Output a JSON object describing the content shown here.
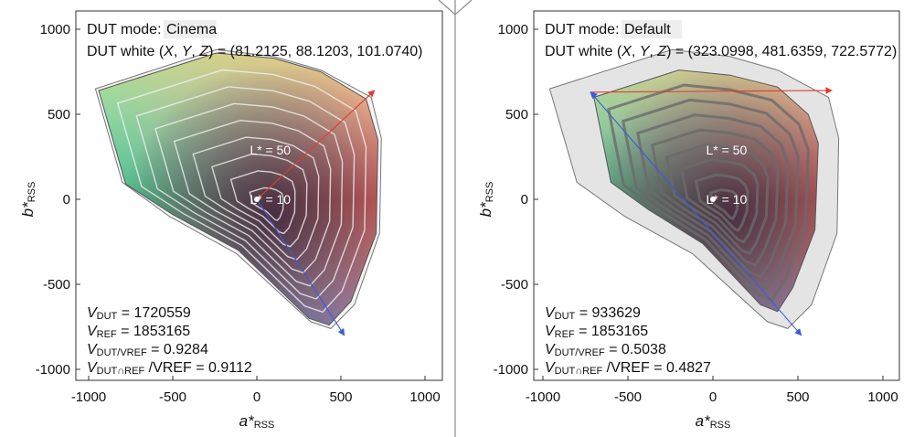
{
  "chart_data": [
    {
      "type": "area",
      "xlabel": "a*",
      "xlabel_sub": "RSS",
      "ylabel": "b*",
      "ylabel_sub": "RSS",
      "xlim": [
        -1100,
        1100
      ],
      "ylim": [
        -1100,
        1100
      ],
      "xticks": [
        "-1000",
        "-500",
        "0",
        "500",
        "1000"
      ],
      "yticks": [
        "1000",
        "500",
        "0",
        "-500",
        "-1000"
      ],
      "dut_mode_label": "DUT mode:",
      "dut_mode": "Cinema",
      "dut_white_label": "DUT white (",
      "dut_white_vars": [
        "X",
        "Y",
        "Z"
      ],
      "dut_white_values": "(81.2125, 88.1203, 101.0740)",
      "lightness_labels": [
        {
          "text": "L* = 50",
          "a": 80,
          "b": 290
        },
        {
          "text": "L* = 10",
          "a": 80,
          "b": 0
        }
      ],
      "stats": [
        {
          "name": "V",
          "sub": "DUT",
          "value": "= 1720559"
        },
        {
          "name": "V",
          "sub": "REF",
          "value": "= 1853165"
        },
        {
          "name": "V",
          "sub": "DUT/VREF",
          "value": "= 0.9284"
        },
        {
          "name": "V",
          "sub": "DUT∩REF",
          "value": "/VREF = 0.9112"
        }
      ],
      "ref_gamut": [
        [
          -960,
          650
        ],
        [
          -240,
          880
        ],
        [
          100,
          840
        ],
        [
          380,
          760
        ],
        [
          680,
          600
        ],
        [
          740,
          360
        ],
        [
          730,
          -200
        ],
        [
          580,
          -620
        ],
        [
          440,
          -760
        ],
        [
          320,
          -720
        ],
        [
          -120,
          -320
        ],
        [
          -520,
          -100
        ],
        [
          -800,
          100
        ],
        [
          -960,
          650
        ]
      ],
      "dut_gamut": [
        [
          -940,
          640
        ],
        [
          -240,
          860
        ],
        [
          100,
          830
        ],
        [
          380,
          750
        ],
        [
          650,
          590
        ],
        [
          720,
          350
        ],
        [
          710,
          -200
        ],
        [
          560,
          -600
        ],
        [
          430,
          -740
        ],
        [
          310,
          -700
        ],
        [
          -110,
          -300
        ],
        [
          -500,
          -90
        ],
        [
          -780,
          90
        ],
        [
          -940,
          640
        ]
      ],
      "axis_arrows": [
        {
          "from": [
            0,
            0
          ],
          "to": [
            700,
            640
          ],
          "color": "#e03c31"
        },
        {
          "from": [
            0,
            0
          ],
          "to": [
            520,
            -800
          ],
          "color": "#3b5bdb"
        }
      ]
    },
    {
      "type": "area",
      "xlabel": "a*",
      "xlabel_sub": "RSS",
      "ylabel": "b*",
      "ylabel_sub": "RSS",
      "xlim": [
        -1100,
        1100
      ],
      "ylim": [
        -1100,
        1100
      ],
      "xticks": [
        "-1000",
        "-500",
        "0",
        "500",
        "1000"
      ],
      "yticks": [
        "1000",
        "500",
        "0",
        "-500",
        "-1000"
      ],
      "dut_mode_label": "DUT mode:",
      "dut_mode": "Default",
      "dut_white_label": "DUT white (",
      "dut_white_vars": [
        "X",
        "Y",
        "Z"
      ],
      "dut_white_values": "(323.0998, 481.6359, 722.5772)",
      "lightness_labels": [
        {
          "text": "L* = 50",
          "a": 80,
          "b": 290
        },
        {
          "text": "L* = 10",
          "a": 80,
          "b": 0
        }
      ],
      "stats": [
        {
          "name": "V",
          "sub": "DUT",
          "value": "= 933629"
        },
        {
          "name": "V",
          "sub": "REF",
          "value": "= 1853165"
        },
        {
          "name": "V",
          "sub": "DUT/VREF",
          "value": "= 0.5038"
        },
        {
          "name": "V",
          "sub": "DUT∩REF",
          "value": "/VREF = 0.4827"
        }
      ],
      "ref_gamut": [
        [
          -960,
          650
        ],
        [
          -240,
          880
        ],
        [
          100,
          840
        ],
        [
          380,
          760
        ],
        [
          680,
          600
        ],
        [
          740,
          360
        ],
        [
          730,
          -200
        ],
        [
          580,
          -620
        ],
        [
          440,
          -760
        ],
        [
          320,
          -720
        ],
        [
          -120,
          -320
        ],
        [
          -520,
          -100
        ],
        [
          -800,
          100
        ],
        [
          -960,
          650
        ]
      ],
      "dut_gamut": [
        [
          -700,
          600
        ],
        [
          -200,
          760
        ],
        [
          100,
          730
        ],
        [
          380,
          660
        ],
        [
          560,
          500
        ],
        [
          620,
          330
        ],
        [
          600,
          -180
        ],
        [
          470,
          -520
        ],
        [
          380,
          -660
        ],
        [
          280,
          -620
        ],
        [
          -60,
          -260
        ],
        [
          -380,
          -60
        ],
        [
          -600,
          100
        ],
        [
          -700,
          600
        ]
      ],
      "axis_arrows": [
        {
          "from": [
            -720,
            630
          ],
          "to": [
            700,
            640
          ],
          "color": "#e03c31"
        },
        {
          "from": [
            -720,
            630
          ],
          "to": [
            520,
            -800
          ],
          "color": "#3b5bdb"
        }
      ]
    }
  ]
}
